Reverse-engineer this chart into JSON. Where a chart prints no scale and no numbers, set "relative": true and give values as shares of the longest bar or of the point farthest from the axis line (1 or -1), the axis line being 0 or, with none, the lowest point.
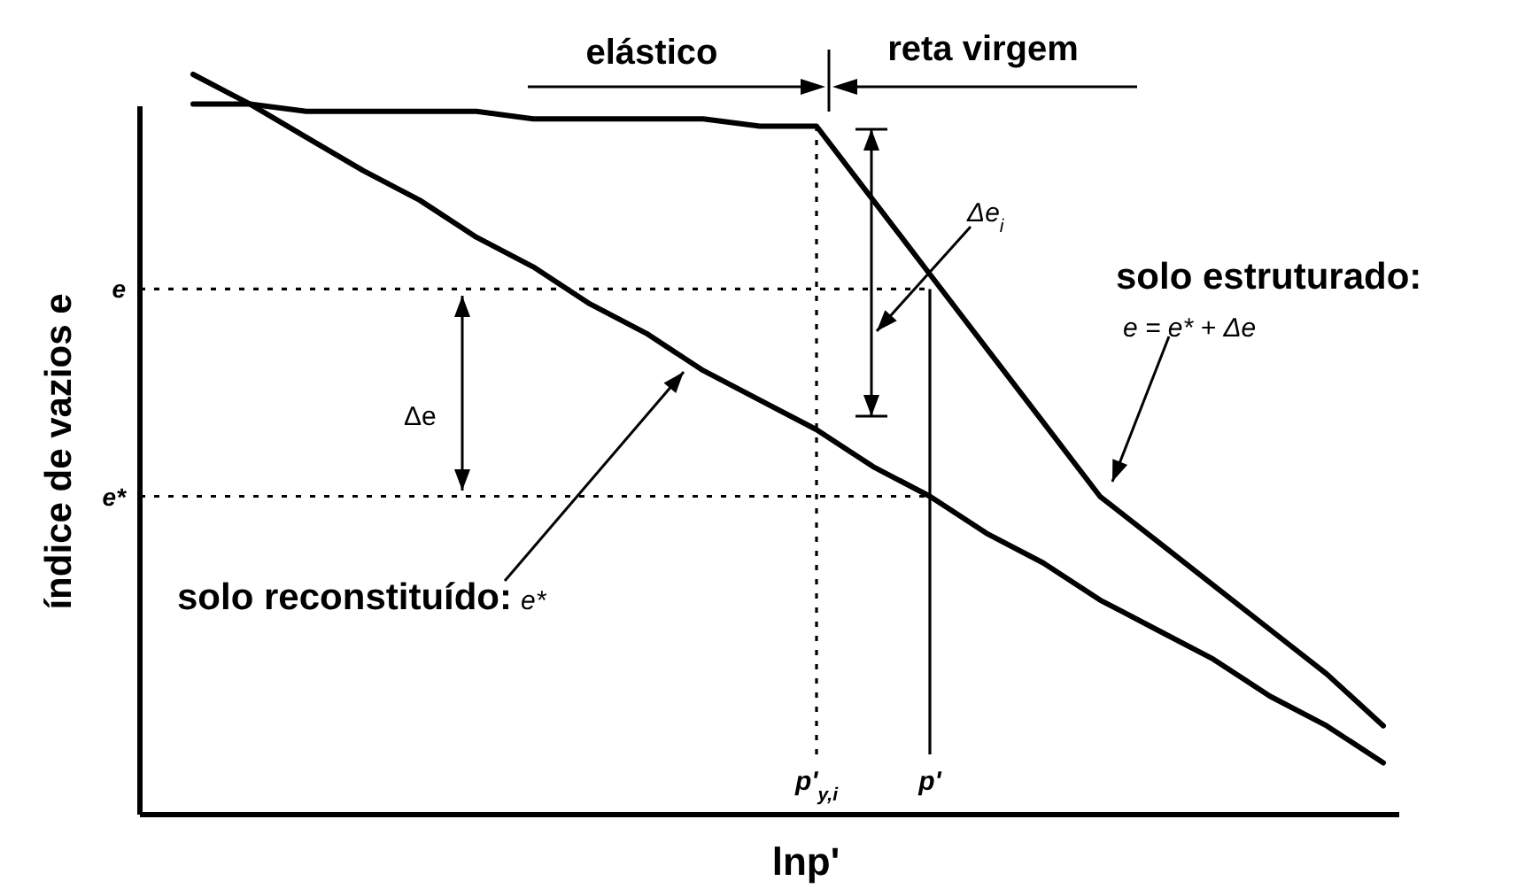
{
  "chart_data": {
    "type": "line",
    "relative": true,
    "xlabel": "lnp'",
    "ylabel": "índice de vazios e",
    "categories": [
      null,
      null,
      null,
      null,
      null,
      null,
      null,
      null,
      null,
      null,
      null,
      "p'$_{y,i}$",
      null,
      "p'",
      null,
      null,
      null,
      null,
      null,
      null,
      null,
      null
    ],
    "series": [
      {
        "color": "#000000",
        "values": [
          0.96,
          0.96,
          0.95,
          0.95,
          0.95,
          0.95,
          0.94,
          0.94,
          0.94,
          0.94,
          0.93,
          0.93,
          0.83,
          0.73,
          0.63,
          0.53,
          0.43,
          0.37,
          0.31,
          0.25,
          0.19,
          0.12
        ]
      },
      {
        "color": "#000000",
        "values": [
          1.0,
          0.96,
          0.915,
          0.87,
          0.83,
          0.78,
          0.74,
          0.69,
          0.65,
          0.6,
          0.56,
          0.52,
          0.47,
          0.43,
          0.38,
          0.34,
          0.29,
          0.25,
          0.21,
          0.16,
          0.12,
          0.07
        ]
      }
    ],
    "ref_lines": [
      {
        "axis": "y",
        "value": 0.71,
        "label": "e",
        "line_style": "dotted"
      },
      {
        "axis": "y",
        "value": 0.43,
        "label": "e*",
        "line_style": "dotted"
      },
      {
        "axis": "x",
        "value": "p'$_{y,i}$",
        "line_style": "dotted"
      },
      {
        "axis": "x",
        "value": "p'",
        "line_style": "solid"
      }
    ],
    "annotations": [
      "elástico",
      "reta virgem",
      "Δe",
      "Δe$_{i}$",
      "e = e* + Δe",
      "e*",
      "solo estruturado:",
      "solo reconstituído:"
    ],
    "marker": "none",
    "line_style": "solid",
    "grid": false
  }
}
